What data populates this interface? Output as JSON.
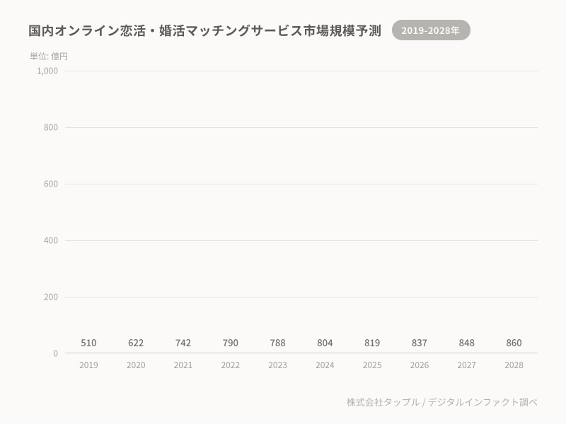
{
  "title": "国内オンライン恋活・婚活マッチングサービス市場規模予測",
  "badge": "2019-2028年",
  "unit_label": "単位: 億円",
  "footer": "株式会社タップル / デジタルインファクト調べ",
  "chart": {
    "type": "bar",
    "categories": [
      "2019",
      "2020",
      "2021",
      "2022",
      "2023",
      "2024",
      "2025",
      "2026",
      "2027",
      "2028"
    ],
    "values": [
      510,
      622,
      742,
      790,
      788,
      804,
      819,
      837,
      848,
      860
    ],
    "bar_color": "#f26274",
    "background_color": "#fcfaf8",
    "grid_color": "#e6e2de",
    "axis_color": "#cfccc8",
    "value_label_color": "#726f6c",
    "tick_label_color": "#a19e9a",
    "title_color": "#5c5a58",
    "title_fontsize": 18,
    "label_fontsize": 12,
    "value_fontsize": 13,
    "ylim_min": 0,
    "ylim_max": 1000,
    "ytick_step": 200,
    "yticks": [
      0,
      200,
      400,
      600,
      800,
      1000
    ],
    "ytick_labels": [
      "0",
      "200",
      "400",
      "600",
      "800",
      "1,000"
    ],
    "bar_width_ratio": 0.74
  }
}
